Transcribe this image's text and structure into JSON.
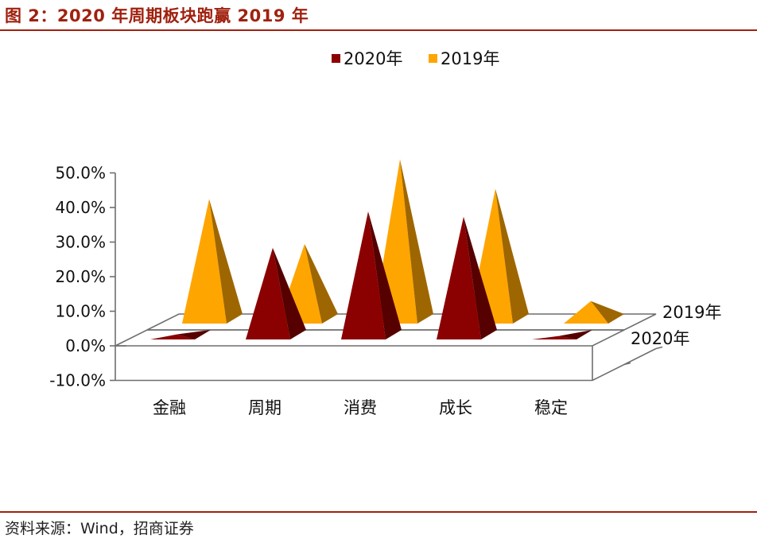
{
  "figure": {
    "title": "图 2：2020 年周期板块跑赢 2019 年",
    "source": "资料来源：Wind，招商证券"
  },
  "colors": {
    "accent": "#a0210f",
    "series_2020": "#8b0000",
    "series_2019": "#ffa500"
  },
  "chart_data": {
    "type": "bar",
    "style": "3d-pyramid",
    "categories": [
      "金融",
      "周期",
      "消费",
      "成长",
      "稳定"
    ],
    "series": [
      {
        "name": "2020年",
        "values": [
          1.5,
          26.5,
          37.0,
          35.5,
          1.0
        ]
      },
      {
        "name": "2019年",
        "values": [
          36.0,
          23.0,
          47.5,
          39.0,
          6.5
        ]
      }
    ],
    "depth_labels": [
      "2020年",
      "2019年"
    ],
    "legend": {
      "placement": "top",
      "items": [
        "2020年",
        "2019年"
      ]
    },
    "yticks": [
      "-10.0%",
      "0.0%",
      "10.0%",
      "20.0%",
      "30.0%",
      "40.0%",
      "50.0%"
    ],
    "ylim": [
      -10,
      50
    ],
    "grid": false
  }
}
